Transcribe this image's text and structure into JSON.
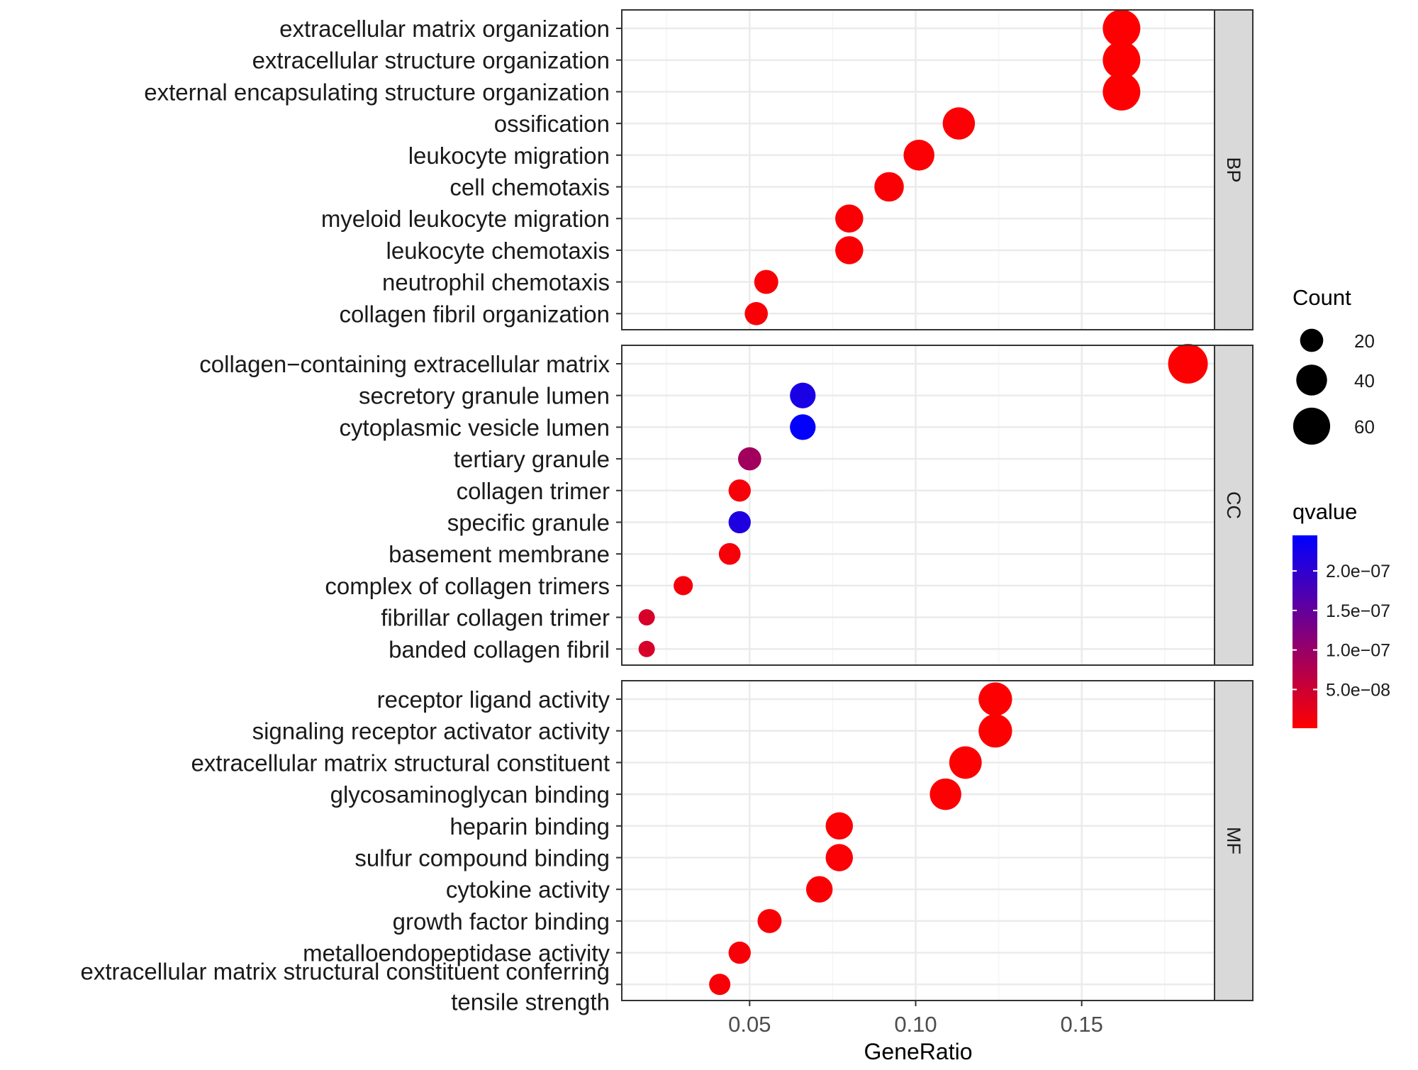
{
  "chart_data": {
    "type": "scatter",
    "subtype": "dotplot-faceted",
    "title": "",
    "xlabel": "GeneRatio",
    "ylabel": "",
    "xlim": [
      0.0115,
      0.19
    ],
    "xticks": [
      {
        "value": 0.05,
        "label": "0.05"
      },
      {
        "value": 0.1,
        "label": "0.10"
      },
      {
        "value": 0.15,
        "label": "0.15"
      }
    ],
    "grid": true,
    "facets": [
      {
        "name": "BP",
        "terms": [
          {
            "label": "extracellular matrix organization",
            "x": 0.162,
            "count": 62,
            "qvalue": 2e-09
          },
          {
            "label": "extracellular structure organization",
            "x": 0.162,
            "count": 62,
            "qvalue": 2e-09
          },
          {
            "label": "external encapsulating structure organization",
            "x": 0.162,
            "count": 62,
            "qvalue": 2e-09
          },
          {
            "label": "ossification",
            "x": 0.113,
            "count": 44,
            "qvalue": 5e-09
          },
          {
            "label": "leukocyte migration",
            "x": 0.101,
            "count": 40,
            "qvalue": 5e-09
          },
          {
            "label": "cell chemotaxis",
            "x": 0.092,
            "count": 36,
            "qvalue": 6e-09
          },
          {
            "label": "myeloid leukocyte migration",
            "x": 0.08,
            "count": 32,
            "qvalue": 6e-09
          },
          {
            "label": "leukocyte chemotaxis",
            "x": 0.08,
            "count": 32,
            "qvalue": 6e-09
          },
          {
            "label": "neutrophil chemotaxis",
            "x": 0.055,
            "count": 22,
            "qvalue": 7e-09
          },
          {
            "label": "collagen fibril organization",
            "x": 0.052,
            "count": 20,
            "qvalue": 7e-09
          }
        ]
      },
      {
        "name": "CC",
        "terms": [
          {
            "label": "collagen−containing extracellular matrix",
            "x": 0.182,
            "count": 70,
            "qvalue": 2e-09
          },
          {
            "label": "secretory granule lumen",
            "x": 0.066,
            "count": 26,
            "qvalue": 2.2e-07
          },
          {
            "label": "cytoplasmic vesicle lumen",
            "x": 0.066,
            "count": 26,
            "qvalue": 2.42e-07
          },
          {
            "label": "tertiary granule",
            "x": 0.05,
            "count": 20,
            "qvalue": 9e-08
          },
          {
            "label": "collagen trimer",
            "x": 0.047,
            "count": 18,
            "qvalue": 1e-08
          },
          {
            "label": "specific granule",
            "x": 0.047,
            "count": 18,
            "qvalue": 2.15e-07
          },
          {
            "label": "basement membrane",
            "x": 0.044,
            "count": 17,
            "qvalue": 1e-08
          },
          {
            "label": "complex of collagen trimers",
            "x": 0.03,
            "count": 12,
            "qvalue": 1.2e-08
          },
          {
            "label": "fibrillar collagen trimer",
            "x": 0.019,
            "count": 7,
            "qvalue": 4e-08
          },
          {
            "label": "banded collagen fibril",
            "x": 0.019,
            "count": 7,
            "qvalue": 4e-08
          }
        ]
      },
      {
        "name": "MF",
        "terms": [
          {
            "label": "receptor ligand activity",
            "x": 0.124,
            "count": 48,
            "qvalue": 3e-09
          },
          {
            "label": "signaling receptor activator activity",
            "x": 0.124,
            "count": 48,
            "qvalue": 3e-09
          },
          {
            "label": "extracellular matrix structural constituent",
            "x": 0.115,
            "count": 45,
            "qvalue": 3e-09
          },
          {
            "label": "glycosaminoglycan binding",
            "x": 0.109,
            "count": 42,
            "qvalue": 4e-09
          },
          {
            "label": "heparin binding",
            "x": 0.077,
            "count": 30,
            "qvalue": 5e-09
          },
          {
            "label": "sulfur compound binding",
            "x": 0.077,
            "count": 30,
            "qvalue": 5e-09
          },
          {
            "label": "cytokine activity",
            "x": 0.071,
            "count": 28,
            "qvalue": 6e-09
          },
          {
            "label": "growth factor binding",
            "x": 0.056,
            "count": 22,
            "qvalue": 7e-09
          },
          {
            "label": "metalloendopeptidase activity",
            "x": 0.047,
            "count": 18,
            "qvalue": 8e-09
          },
          {
            "label": "extracellular matrix structural constituent conferring tensile strength",
            "label_lines": [
              "extracellular matrix structural constituent conferring",
              "tensile strength"
            ],
            "x": 0.041,
            "count": 16,
            "qvalue": 8e-09
          }
        ]
      }
    ],
    "legend": {
      "count": {
        "title": "Count",
        "entries": [
          {
            "value": 20,
            "label": "20"
          },
          {
            "value": 40,
            "label": "40"
          },
          {
            "value": 60,
            "label": "60"
          }
        ]
      },
      "qvalue": {
        "title": "qvalue",
        "min": 1e-09,
        "max": 2.45e-07,
        "low_color": "#ff0000",
        "high_color": "#0000ff",
        "ticks": [
          {
            "value": 5e-08,
            "label": "5.0e−08"
          },
          {
            "value": 1e-07,
            "label": "1.0e−07"
          },
          {
            "value": 1.5e-07,
            "label": "1.5e−07"
          },
          {
            "value": 2e-07,
            "label": "2.0e−07"
          }
        ]
      }
    },
    "colors": {
      "panel_border": "#333333",
      "strip_fill": "#d9d9d9",
      "grid_major": "#ebebeb",
      "grid_minor": "#f5f5f5",
      "text": "#1a1a1a"
    }
  }
}
